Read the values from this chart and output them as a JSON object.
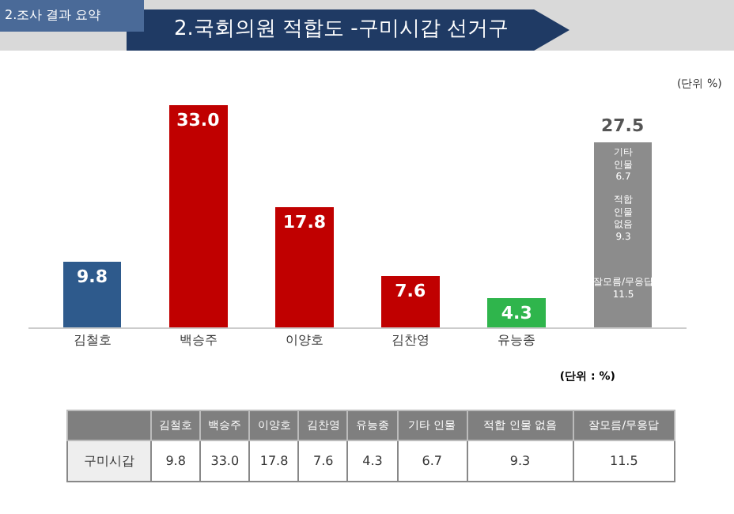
{
  "chart_data": {
    "type": "bar",
    "title": "2.국회의원 적합도 -구미시갑 선거구",
    "subtitle": "2.조사 결과 요약",
    "categories": [
      "김철호",
      "백승주",
      "이양호",
      "김찬영",
      "유능종",
      null
    ],
    "stacked": true,
    "legend": false,
    "series": [
      {
        "colors": [
          "#2e5a8c",
          "#c00000",
          "#c00000",
          "#c00000",
          "#2fb54c",
          null
        ],
        "values": [
          9.8,
          33.0,
          17.8,
          7.6,
          4.3,
          null
        ],
        "value_labels": [
          "9.8",
          "33.0",
          "17.8",
          "7.6",
          "4.3",
          null
        ]
      },
      {
        "name": "잘모름/무응답",
        "color": "#8c8c8c",
        "values": [
          null,
          null,
          null,
          null,
          null,
          11.5
        ],
        "value_labels": [
          null,
          null,
          null,
          null,
          null,
          "11.5"
        ]
      },
      {
        "name": "적합 인물 없음",
        "color": "#8c8c8c",
        "values": [
          null,
          null,
          null,
          null,
          null,
          9.3
        ],
        "value_labels": [
          null,
          null,
          null,
          null,
          null,
          "9.3"
        ]
      },
      {
        "name": "기타 인물",
        "color": "#8c8c8c",
        "values": [
          null,
          null,
          null,
          null,
          null,
          6.7
        ],
        "value_labels": [
          null,
          null,
          null,
          null,
          null,
          "6.7"
        ]
      }
    ],
    "totals": [
      null,
      null,
      null,
      null,
      null,
      "27.5"
    ],
    "annotations": [
      "(단위 %)",
      "(단위 : %)",
      "구미시갑"
    ]
  }
}
